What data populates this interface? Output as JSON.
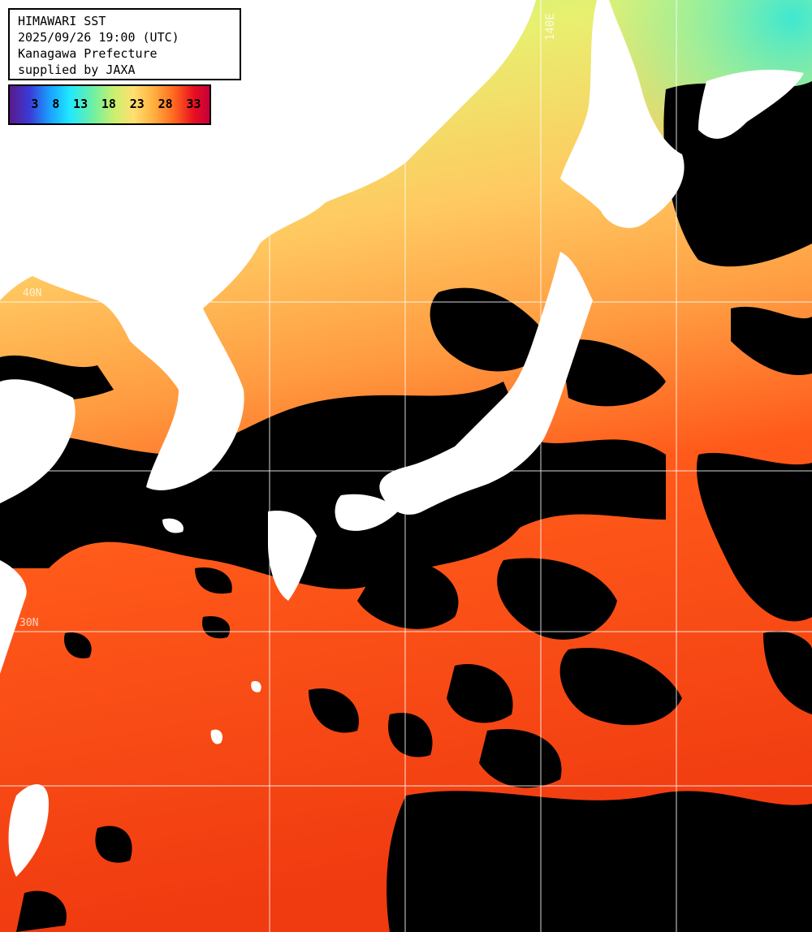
{
  "header": {
    "line1": "HIMAWARI SST",
    "line2": "2025/09/26 19:00 (UTC)",
    "line3": "Kanagawa Prefecture",
    "line4": "supplied by JAXA"
  },
  "legend": {
    "ticks": [
      "3",
      "8",
      "13",
      "18",
      "23",
      "28",
      "33"
    ],
    "colors": [
      "#5a1a8a",
      "#3a3ad8",
      "#1aa0ff",
      "#20e8ff",
      "#70f0a0",
      "#c8f070",
      "#ffe070",
      "#ffb040",
      "#ff6a20",
      "#e81020",
      "#c8003a"
    ]
  },
  "graticule": {
    "lon_label": "140E",
    "lat_labels": [
      "30N",
      "40N"
    ]
  },
  "colors": {
    "land": "#ffffff",
    "cloud": "#000000",
    "gridline": "#ffffff"
  }
}
